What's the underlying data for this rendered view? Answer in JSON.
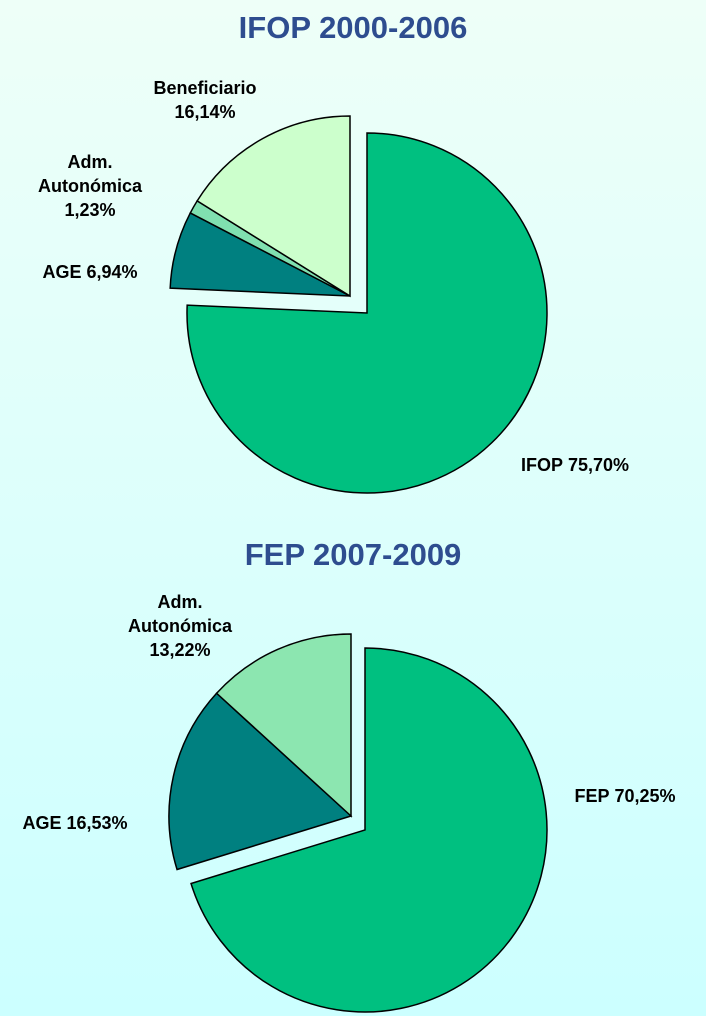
{
  "chart_data": [
    {
      "type": "pie",
      "title": "IFOP 2000-2006",
      "categories": [
        "IFOP",
        "AGE",
        "Adm. Autonómica",
        "Beneficiario"
      ],
      "values": [
        75.7,
        6.94,
        1.23,
        16.14
      ],
      "value_labels": [
        "75,70%",
        "6,94%",
        "1,23%",
        "16,14%"
      ],
      "colors": [
        "#00c080",
        "#008080",
        "#80e0b0",
        "#ccffcc"
      ]
    },
    {
      "type": "pie",
      "title": "FEP 2007-2009",
      "categories": [
        "FEP",
        "AGE",
        "Adm. Autonómica"
      ],
      "values": [
        70.25,
        16.53,
        13.22
      ],
      "value_labels": [
        "70,25%",
        "16,53%",
        "13,22%"
      ],
      "colors": [
        "#00c080",
        "#008080",
        "#8ce6b0"
      ]
    }
  ]
}
